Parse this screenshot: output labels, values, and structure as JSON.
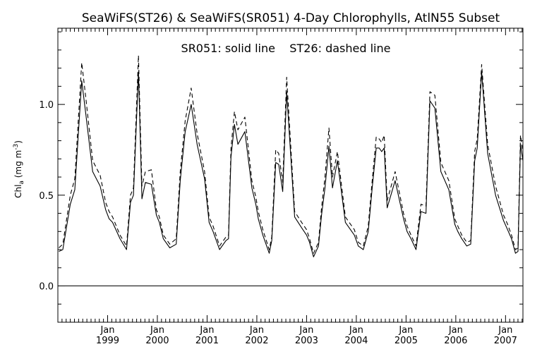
{
  "chart_data": {
    "type": "line",
    "title": "SeaWiFS(ST26) & SeaWiFS(SR051) 4-Day Chlorophylls, AtlN55 Subset",
    "annotation": "SR051: solid line    ST26: dashed line",
    "ylabel": "Chl_a (mg m^-3)",
    "ylabel_parts": {
      "base": "Chl",
      "sub": "a",
      "unit": " (mg m",
      "exp": "-3",
      "close": ")"
    },
    "xlabel": "",
    "xlim": [
      1998.0,
      2007.35
    ],
    "ylim": [
      -0.2,
      1.42
    ],
    "yticks": [
      0.0,
      0.5,
      1.0
    ],
    "ytick_labels": [
      "0.0",
      "0.5",
      "1.0"
    ],
    "x_month_label": "Jan",
    "x_years": [
      "1999",
      "2000",
      "2001",
      "2002",
      "2003",
      "2004",
      "2005",
      "2006",
      "2007"
    ],
    "grid": false,
    "line_color": "#000000",
    "series": [
      {
        "name": "SR051",
        "style": "solid",
        "x": [
          1998.02,
          1998.1,
          1998.25,
          1998.34,
          1998.48,
          1998.56,
          1998.7,
          1998.85,
          1998.96,
          1999.03,
          1999.1,
          1999.25,
          1999.38,
          1999.46,
          1999.52,
          1999.62,
          1999.69,
          1999.76,
          1999.88,
          1999.98,
          2000.04,
          2000.12,
          2000.25,
          2000.38,
          2000.46,
          2000.56,
          2000.68,
          2000.8,
          2000.95,
          2001.04,
          2001.12,
          2001.25,
          2001.38,
          2001.43,
          2001.48,
          2001.55,
          2001.62,
          2001.76,
          2001.9,
          2001.98,
          2002.03,
          2002.12,
          2002.25,
          2002.3,
          2002.38,
          2002.44,
          2002.52,
          2002.6,
          2002.76,
          2002.9,
          2003.0,
          2003.06,
          2003.14,
          2003.24,
          2003.3,
          2003.37,
          2003.45,
          2003.52,
          2003.62,
          2003.78,
          2003.96,
          2004.04,
          2004.14,
          2004.24,
          2004.32,
          2004.4,
          2004.46,
          2004.51,
          2004.56,
          2004.62,
          2004.78,
          2004.95,
          2005.02,
          2005.1,
          2005.2,
          2005.3,
          2005.4,
          2005.48,
          2005.58,
          2005.7,
          2005.86,
          2005.98,
          2006.04,
          2006.12,
          2006.22,
          2006.3,
          2006.38,
          2006.43,
          2006.52,
          2006.64,
          2006.8,
          2006.96,
          2007.04,
          2007.12,
          2007.2,
          2007.25,
          2007.3,
          2007.35
        ],
        "y": [
          0.19,
          0.2,
          0.45,
          0.53,
          1.13,
          0.95,
          0.63,
          0.55,
          0.42,
          0.37,
          0.35,
          0.26,
          0.2,
          0.46,
          0.5,
          1.18,
          0.48,
          0.57,
          0.56,
          0.39,
          0.35,
          0.26,
          0.21,
          0.23,
          0.58,
          0.85,
          1.0,
          0.78,
          0.59,
          0.35,
          0.3,
          0.2,
          0.25,
          0.26,
          0.71,
          0.89,
          0.78,
          0.85,
          0.54,
          0.45,
          0.37,
          0.28,
          0.18,
          0.25,
          0.68,
          0.67,
          0.52,
          1.07,
          0.38,
          0.32,
          0.28,
          0.24,
          0.16,
          0.22,
          0.39,
          0.54,
          0.77,
          0.54,
          0.69,
          0.35,
          0.28,
          0.22,
          0.2,
          0.3,
          0.54,
          0.76,
          0.76,
          0.74,
          0.76,
          0.43,
          0.58,
          0.37,
          0.3,
          0.26,
          0.2,
          0.41,
          0.4,
          1.02,
          0.98,
          0.63,
          0.53,
          0.34,
          0.3,
          0.26,
          0.22,
          0.23,
          0.69,
          0.76,
          1.18,
          0.73,
          0.5,
          0.36,
          0.31,
          0.26,
          0.18,
          0.19,
          0.78,
          0.69
        ]
      },
      {
        "name": "ST26",
        "style": "dashed",
        "x": [
          1998.02,
          1998.1,
          1998.25,
          1998.34,
          1998.48,
          1998.56,
          1998.7,
          1998.85,
          1998.96,
          1999.03,
          1999.1,
          1999.25,
          1999.38,
          1999.46,
          1999.52,
          1999.62,
          1999.69,
          1999.76,
          1999.88,
          1999.98,
          2000.04,
          2000.12,
          2000.25,
          2000.38,
          2000.46,
          2000.56,
          2000.68,
          2000.8,
          2000.95,
          2001.04,
          2001.12,
          2001.25,
          2001.38,
          2001.43,
          2001.48,
          2001.55,
          2001.62,
          2001.76,
          2001.9,
          2001.98,
          2002.03,
          2002.12,
          2002.25,
          2002.3,
          2002.38,
          2002.44,
          2002.52,
          2002.6,
          2002.76,
          2002.9,
          2003.0,
          2003.06,
          2003.14,
          2003.24,
          2003.3,
          2003.37,
          2003.45,
          2003.52,
          2003.62,
          2003.78,
          2003.96,
          2004.04,
          2004.14,
          2004.24,
          2004.32,
          2004.4,
          2004.46,
          2004.51,
          2004.56,
          2004.62,
          2004.78,
          2004.95,
          2005.02,
          2005.1,
          2005.2,
          2005.3,
          2005.4,
          2005.48,
          2005.58,
          2005.7,
          2005.86,
          2005.98,
          2006.04,
          2006.12,
          2006.22,
          2006.3,
          2006.38,
          2006.43,
          2006.52,
          2006.64,
          2006.8,
          2006.96,
          2007.04,
          2007.12,
          2007.2,
          2007.25,
          2007.3,
          2007.35
        ],
        "y": [
          0.21,
          0.23,
          0.5,
          0.59,
          1.23,
          1.04,
          0.69,
          0.61,
          0.46,
          0.41,
          0.38,
          0.28,
          0.22,
          0.5,
          0.54,
          1.27,
          0.55,
          0.63,
          0.64,
          0.42,
          0.38,
          0.28,
          0.23,
          0.26,
          0.63,
          0.91,
          1.09,
          0.84,
          0.63,
          0.38,
          0.33,
          0.22,
          0.27,
          0.28,
          0.76,
          0.96,
          0.86,
          0.93,
          0.58,
          0.49,
          0.41,
          0.31,
          0.2,
          0.27,
          0.75,
          0.73,
          0.57,
          1.15,
          0.41,
          0.35,
          0.31,
          0.26,
          0.18,
          0.24,
          0.43,
          0.6,
          0.87,
          0.6,
          0.74,
          0.38,
          0.31,
          0.24,
          0.22,
          0.33,
          0.58,
          0.82,
          0.81,
          0.79,
          0.83,
          0.47,
          0.63,
          0.4,
          0.33,
          0.28,
          0.22,
          0.45,
          0.44,
          1.07,
          1.05,
          0.68,
          0.58,
          0.37,
          0.33,
          0.28,
          0.24,
          0.25,
          0.74,
          0.81,
          1.22,
          0.78,
          0.55,
          0.39,
          0.34,
          0.28,
          0.2,
          0.21,
          0.83,
          0.74
        ]
      }
    ]
  }
}
